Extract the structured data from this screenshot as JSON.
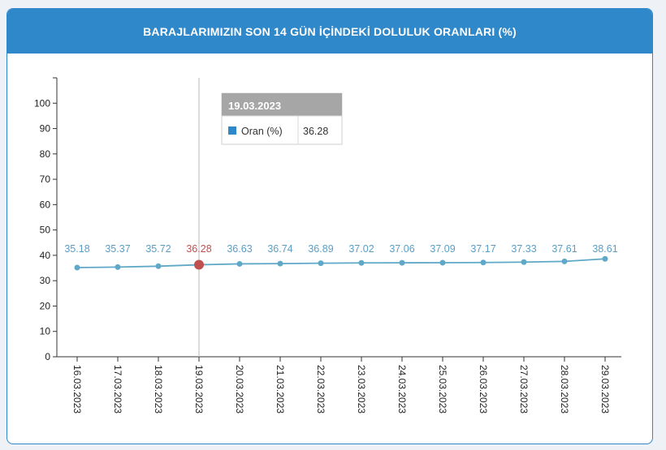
{
  "header": {
    "title": "BARAJLARIMIZIN SON 14 GÜN İÇİNDEKİ DOLULUK ORANLARI (%)"
  },
  "tooltip": {
    "date": "19.03.2023",
    "series_label": "Oran (%)",
    "value": "36.28"
  },
  "colors": {
    "header": "#2f88c9",
    "line": "#5fa8c8",
    "label": "#5a9ec7",
    "highlight": "#c0504d",
    "tooltip_header": "#a6a6a6"
  },
  "chart_data": {
    "type": "line",
    "categories": [
      "16.03.2023",
      "17.03.2023",
      "18.03.2023",
      "19.03.2023",
      "20.03.2023",
      "21.03.2023",
      "22.03.2023",
      "23.03.2023",
      "24.03.2023",
      "25.03.2023",
      "26.03.2023",
      "27.03.2023",
      "28.03.2023",
      "29.03.2023"
    ],
    "series": [
      {
        "name": "Oran (%)",
        "values": [
          35.18,
          35.37,
          35.72,
          36.28,
          36.63,
          36.74,
          36.89,
          37.02,
          37.06,
          37.09,
          37.17,
          37.33,
          37.61,
          38.61
        ]
      }
    ],
    "value_labels": [
      "35.18",
      "35.37",
      "35.72",
      "36.28",
      "36.63",
      "36.74",
      "36.89",
      "37.02",
      "37.06",
      "37.09",
      "37.17",
      "37.33",
      "37.61",
      "38.61"
    ],
    "title": "BARAJLARIMIZIN SON 14 GÜN İÇİNDEKİ DOLULUK ORANLARI (%)",
    "ylim": [
      0,
      110
    ],
    "yticks": [
      0,
      10,
      20,
      30,
      40,
      50,
      60,
      70,
      80,
      90,
      100
    ],
    "highlight_index": 3,
    "grid": false,
    "legend": "none"
  }
}
